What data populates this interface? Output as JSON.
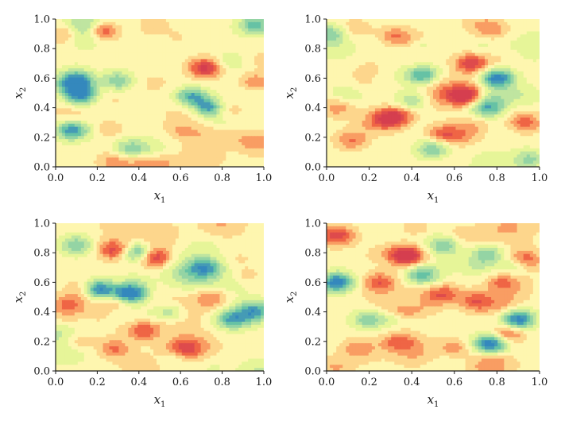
{
  "chart_data": [
    {
      "type": "heatmap",
      "panel": "top-left",
      "xlabel": "x1",
      "ylabel": "x2",
      "xlim": [
        0.0,
        1.0
      ],
      "ylim": [
        0.0,
        1.0
      ],
      "xticks": [
        "0.0",
        "0.2",
        "0.4",
        "0.6",
        "0.8",
        "1.0"
      ],
      "yticks": [
        "0.0",
        "0.2",
        "0.4",
        "0.6",
        "0.8",
        "1.0"
      ],
      "colormap": "Spectral (red = high, yellow = mid, blue = low)",
      "colorbar": false,
      "grid": false,
      "features": [
        {
          "x": 0.22,
          "y": 0.92,
          "value": 0.92
        },
        {
          "x": 0.05,
          "y": 0.9,
          "value": 0.75
        },
        {
          "x": 0.72,
          "y": 0.67,
          "value": 0.9
        },
        {
          "x": 0.96,
          "y": 0.57,
          "value": 0.75
        },
        {
          "x": 0.95,
          "y": 0.17,
          "value": 0.72
        },
        {
          "x": 0.46,
          "y": 0.96,
          "value": 0.65
        },
        {
          "x": 0.6,
          "y": 0.88,
          "value": 0.6
        },
        {
          "x": 0.28,
          "y": 0.03,
          "value": 0.65
        },
        {
          "x": 0.45,
          "y": 0.02,
          "value": 0.7
        },
        {
          "x": 0.1,
          "y": 0.58,
          "value": 0.08
        },
        {
          "x": 0.12,
          "y": 0.48,
          "value": 0.12
        },
        {
          "x": 0.73,
          "y": 0.4,
          "value": 0.05
        },
        {
          "x": 0.65,
          "y": 0.48,
          "value": 0.2
        },
        {
          "x": 0.08,
          "y": 0.25,
          "value": 0.15
        },
        {
          "x": 0.3,
          "y": 0.58,
          "value": 0.3
        },
        {
          "x": 0.35,
          "y": 0.12,
          "value": 0.3
        },
        {
          "x": 0.96,
          "y": 0.96,
          "value": 0.25
        },
        {
          "x": 0.82,
          "y": 0.22,
          "value": 0.6
        }
      ]
    },
    {
      "type": "heatmap",
      "panel": "top-right",
      "xlabel": "x1",
      "ylabel": "x2",
      "xlim": [
        0.0,
        1.0
      ],
      "ylim": [
        0.0,
        1.0
      ],
      "xticks": [
        "0.0",
        "0.2",
        "0.4",
        "0.6",
        "0.8",
        "1.0"
      ],
      "yticks": [
        "0.0",
        "0.2",
        "0.4",
        "0.6",
        "0.8",
        "1.0"
      ],
      "colormap": "Spectral (red = high, yellow = mid, blue = low)",
      "colorbar": false,
      "grid": false,
      "features": [
        {
          "x": 0.65,
          "y": 0.48,
          "value": 0.95
        },
        {
          "x": 0.68,
          "y": 0.7,
          "value": 0.85
        },
        {
          "x": 0.3,
          "y": 0.33,
          "value": 0.88
        },
        {
          "x": 0.55,
          "y": 0.22,
          "value": 0.78
        },
        {
          "x": 0.12,
          "y": 0.18,
          "value": 0.75
        },
        {
          "x": 0.93,
          "y": 0.3,
          "value": 0.78
        },
        {
          "x": 0.32,
          "y": 0.88,
          "value": 0.75
        },
        {
          "x": 0.78,
          "y": 0.92,
          "value": 0.7
        },
        {
          "x": 0.05,
          "y": 0.4,
          "value": 0.7
        },
        {
          "x": 0.45,
          "y": 0.62,
          "value": 0.2
        },
        {
          "x": 0.8,
          "y": 0.6,
          "value": 0.08
        },
        {
          "x": 0.75,
          "y": 0.4,
          "value": 0.25
        },
        {
          "x": 0.5,
          "y": 0.12,
          "value": 0.3
        },
        {
          "x": 0.03,
          "y": 0.9,
          "value": 0.3
        },
        {
          "x": 0.4,
          "y": 0.45,
          "value": 0.35
        },
        {
          "x": 0.95,
          "y": 0.05,
          "value": 0.35
        }
      ]
    },
    {
      "type": "heatmap",
      "panel": "bottom-left",
      "xlabel": "x1",
      "ylabel": "x2",
      "xlim": [
        0.0,
        1.0
      ],
      "ylim": [
        0.0,
        1.0
      ],
      "xticks": [
        "0.0",
        "0.2",
        "0.4",
        "0.6",
        "0.8",
        "1.0"
      ],
      "yticks": [
        "0.0",
        "0.2",
        "0.4",
        "0.6",
        "0.8",
        "1.0"
      ],
      "colormap": "Spectral (red = high, yellow = mid, blue = low)",
      "colorbar": false,
      "grid": false,
      "features": [
        {
          "x": 0.47,
          "y": 0.77,
          "value": 0.92
        },
        {
          "x": 0.28,
          "y": 0.82,
          "value": 0.85
        },
        {
          "x": 0.14,
          "y": 0.55,
          "value": 0.75
        },
        {
          "x": 0.05,
          "y": 0.45,
          "value": 0.72
        },
        {
          "x": 0.3,
          "y": 0.45,
          "value": 0.7
        },
        {
          "x": 0.42,
          "y": 0.27,
          "value": 0.78
        },
        {
          "x": 0.28,
          "y": 0.15,
          "value": 0.75
        },
        {
          "x": 0.12,
          "y": 0.2,
          "value": 0.7
        },
        {
          "x": 0.75,
          "y": 0.5,
          "value": 0.75
        },
        {
          "x": 0.92,
          "y": 0.65,
          "value": 0.68
        },
        {
          "x": 0.62,
          "y": 0.15,
          "value": 0.72
        },
        {
          "x": 0.2,
          "y": 0.55,
          "value": 0.05
        },
        {
          "x": 0.36,
          "y": 0.52,
          "value": 0.08
        },
        {
          "x": 0.4,
          "y": 0.8,
          "value": 0.18
        },
        {
          "x": 0.72,
          "y": 0.7,
          "value": 0.25
        },
        {
          "x": 0.85,
          "y": 0.35,
          "value": 0.2
        },
        {
          "x": 0.96,
          "y": 0.4,
          "value": 0.25
        },
        {
          "x": 0.55,
          "y": 0.4,
          "value": 0.3
        },
        {
          "x": 0.1,
          "y": 0.85,
          "value": 0.3
        }
      ]
    },
    {
      "type": "heatmap",
      "panel": "bottom-right",
      "xlabel": "x1",
      "ylabel": "x2",
      "xlim": [
        0.0,
        1.0
      ],
      "ylim": [
        0.0,
        1.0
      ],
      "xticks": [
        "0.0",
        "0.2",
        "0.4",
        "0.6",
        "0.8",
        "1.0"
      ],
      "yticks": [
        "0.0",
        "0.2",
        "0.4",
        "0.6",
        "0.8",
        "1.0"
      ],
      "colormap": "Spectral (red = high, yellow = mid, blue = low)",
      "colorbar": false,
      "grid": false,
      "features": [
        {
          "x": 0.38,
          "y": 0.78,
          "value": 0.95
        },
        {
          "x": 0.05,
          "y": 0.92,
          "value": 0.85
        },
        {
          "x": 0.25,
          "y": 0.6,
          "value": 0.78
        },
        {
          "x": 0.55,
          "y": 0.52,
          "value": 0.8
        },
        {
          "x": 0.7,
          "y": 0.47,
          "value": 0.78
        },
        {
          "x": 0.85,
          "y": 0.25,
          "value": 0.78
        },
        {
          "x": 0.92,
          "y": 0.75,
          "value": 0.8
        },
        {
          "x": 0.6,
          "y": 0.15,
          "value": 0.72
        },
        {
          "x": 0.35,
          "y": 0.2,
          "value": 0.72
        },
        {
          "x": 0.15,
          "y": 0.15,
          "value": 0.7
        },
        {
          "x": 0.05,
          "y": 0.6,
          "value": 0.1
        },
        {
          "x": 0.77,
          "y": 0.18,
          "value": 0.05
        },
        {
          "x": 0.9,
          "y": 0.35,
          "value": 0.1
        },
        {
          "x": 0.45,
          "y": 0.65,
          "value": 0.25
        },
        {
          "x": 0.55,
          "y": 0.85,
          "value": 0.3
        },
        {
          "x": 0.2,
          "y": 0.35,
          "value": 0.3
        },
        {
          "x": 0.75,
          "y": 0.8,
          "value": 0.3
        }
      ]
    }
  ]
}
